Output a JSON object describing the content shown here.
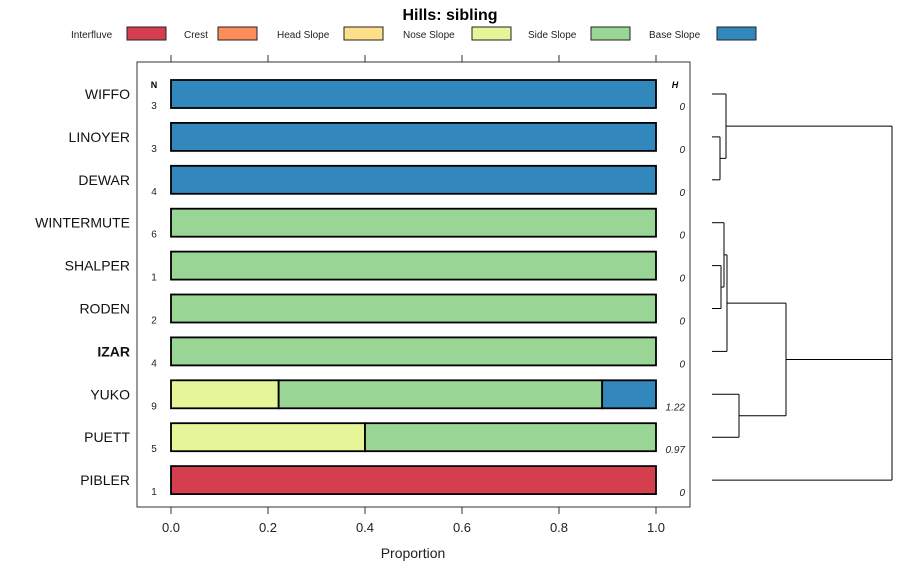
{
  "chart_data": {
    "type": "bar",
    "orientation": "horizontal-stacked",
    "title": "Hills: sibling",
    "xlabel": "Proportion",
    "xlim": [
      0,
      1
    ],
    "xticks": [
      "0.0",
      "0.2",
      "0.4",
      "0.6",
      "0.8",
      "1.0"
    ],
    "legend_placement": "top",
    "n_header": "N",
    "h_header": "H",
    "legend": [
      {
        "name": "Interfluve",
        "color": "#D53E4F"
      },
      {
        "name": "Crest",
        "color": "#FC8D59"
      },
      {
        "name": "Head Slope",
        "color": "#FEE08B"
      },
      {
        "name": "Nose Slope",
        "color": "#E6F598"
      },
      {
        "name": "Side Slope",
        "color": "#99D594"
      },
      {
        "name": "Base Slope",
        "color": "#3288BD"
      }
    ],
    "categories": [
      "WIFFO",
      "LINOYER",
      "DEWAR",
      "WINTERMUTE",
      "SHALPER",
      "RODEN",
      "IZAR",
      "YUKO",
      "PUETT",
      "PIBLER"
    ],
    "highlight": "IZAR",
    "n": [
      "3",
      "3",
      "4",
      "6",
      "1",
      "2",
      "4",
      "9",
      "5",
      "1"
    ],
    "h": [
      "0",
      "0",
      "0",
      "0",
      "0",
      "0",
      "0",
      "1.22",
      "0.97",
      "0"
    ],
    "series": [
      {
        "name": "Interfluve",
        "values": [
          0,
          0,
          0,
          0,
          0,
          0,
          0,
          0,
          0,
          1
        ]
      },
      {
        "name": "Crest",
        "values": [
          0,
          0,
          0,
          0,
          0,
          0,
          0,
          0,
          0,
          0
        ]
      },
      {
        "name": "Head Slope",
        "values": [
          0,
          0,
          0,
          0,
          0,
          0,
          0,
          0,
          0,
          0
        ]
      },
      {
        "name": "Nose Slope",
        "values": [
          0,
          0,
          0,
          0,
          0,
          0,
          0,
          0.222,
          0.4,
          0
        ]
      },
      {
        "name": "Side Slope",
        "values": [
          0,
          0,
          0,
          1,
          1,
          1,
          1,
          0.667,
          0.6,
          0
        ]
      },
      {
        "name": "Base Slope",
        "values": [
          1,
          1,
          1,
          0,
          0,
          0,
          0,
          0.111,
          0,
          0
        ]
      }
    ],
    "dendrogram": {
      "merges": [
        {
          "a": "LINOYER",
          "b": "DEWAR",
          "height": 8,
          "id": "m1"
        },
        {
          "a": "WIFFO",
          "b": "m1",
          "height": 14,
          "id": "m2"
        },
        {
          "a": "SHALPER",
          "b": "RODEN",
          "height": 9,
          "id": "m3"
        },
        {
          "a": "WINTERMUTE",
          "b": "m3",
          "height": 12,
          "id": "m4"
        },
        {
          "a": "IZAR",
          "b": "m4",
          "height": 15,
          "id": "m5"
        },
        {
          "a": "YUKO",
          "b": "PUETT",
          "height": 27,
          "id": "m6"
        },
        {
          "a": "m5",
          "b": "m6",
          "height": 74,
          "id": "m7"
        },
        {
          "a": "m2",
          "b": "m7",
          "height": 180,
          "id": "m8"
        },
        {
          "a": "PIBLER",
          "b": "m8",
          "height": 180,
          "id": "m9"
        }
      ]
    }
  }
}
